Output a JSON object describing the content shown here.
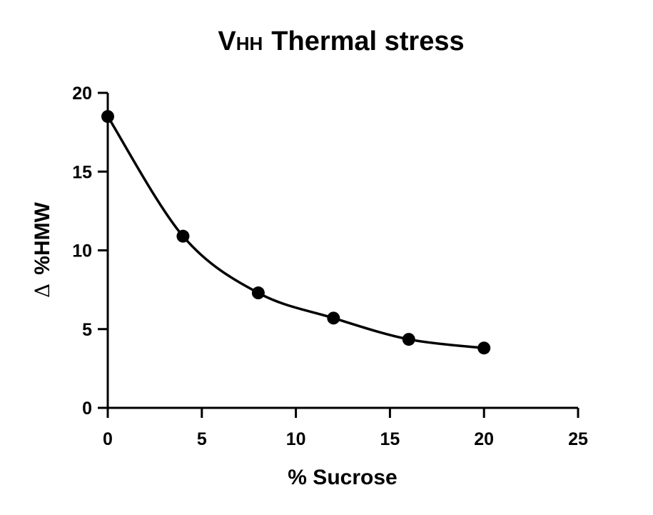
{
  "chart_data": {
    "type": "line",
    "title": {
      "main_letter": "V",
      "subscript": "HH",
      "rest": "Thermal stress"
    },
    "xlabel": "% Sucrose",
    "ylabel": {
      "symbol": "Δ",
      "text": "%HMW"
    },
    "xlim": [
      0,
      25
    ],
    "ylim": [
      0,
      20
    ],
    "x_ticks": [
      0,
      5,
      10,
      15,
      20,
      25
    ],
    "y_ticks": [
      0,
      5,
      10,
      15,
      20
    ],
    "grid": false,
    "series": [
      {
        "x": [
          0,
          4,
          8,
          12,
          16,
          20
        ],
        "y": [
          18.5,
          10.9,
          7.3,
          5.7,
          4.35,
          3.8
        ],
        "color": "#000000",
        "marker": "circle"
      }
    ]
  }
}
